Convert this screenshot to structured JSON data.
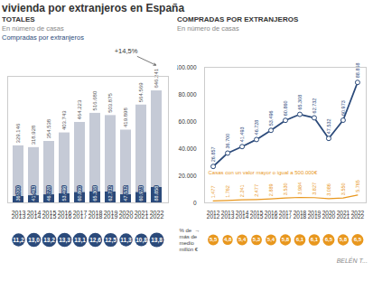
{
  "title": "vivienda por extranjeros en España",
  "caption": "BELÉN T...",
  "chart_data": [
    {
      "type": "bar",
      "title": "TOTALES",
      "subtitle": "En número de casas",
      "stacked": true,
      "categories": [
        "2013",
        "2014",
        "2015",
        "2016",
        "2017",
        "2018",
        "2019",
        "2020",
        "2021",
        "2022"
      ],
      "series": [
        {
          "name": "Compradas por extranjeros",
          "color": "#2b4a7a",
          "values": [
            36700,
            41493,
            46728,
            53496,
            60860,
            65308,
            62732,
            47532,
            60973,
            88858
          ],
          "value_labels": [
            "36.700",
            "41.493",
            "46.728",
            "53.496",
            "60.860",
            "65.308",
            "62.732",
            "47.532",
            "60.973",
            "88.858"
          ]
        },
        {
          "color": "#c5cad6",
          "values": [
            292446,
            277435,
            307810,
            350247,
            403363,
            451372,
            441143,
            372366,
            503596,
            557383
          ]
        }
      ],
      "totals": [
        329146,
        318928,
        354538,
        403743,
        464223,
        516680,
        503875,
        419898,
        564569,
        646241
      ],
      "total_labels": [
        "329.146",
        "318.928",
        "354.538",
        "403.743",
        "464.223",
        "516.680",
        "503.875",
        "419.898",
        "564.569",
        "646.241"
      ],
      "data_labels": true,
      "annotation": "+14,5%",
      "ylim": [
        0,
        730000
      ],
      "tick_labels": "x",
      "grid": false,
      "legend": "top-left",
      "pct_values": [
        11.2,
        13.0,
        13.2,
        13.3,
        13.1,
        12.6,
        12.5,
        11.3,
        10.8,
        13.8
      ],
      "pct_labels": [
        "11,2",
        "13,0",
        "13,2",
        "13,3",
        "13,1",
        "12,6",
        "12,5",
        "11,3",
        "10,8",
        "13,8"
      ]
    },
    {
      "type": "line",
      "title": "COMPRADAS POR EXTRANJEROS",
      "subtitle": "En número de casas",
      "x": [
        2012,
        2013,
        2014,
        2015,
        2016,
        2017,
        2018,
        2019,
        2020,
        2021,
        2022
      ],
      "xlim": [
        2011.4,
        2022.6
      ],
      "xticks": [
        2012,
        2013,
        2014,
        2015,
        2016,
        2017,
        2018,
        2019,
        2020,
        2021,
        2022
      ],
      "ylim": [
        0,
        100000
      ],
      "yticks": [
        0,
        {
          "value": 20000,
          "label": "20.000"
        },
        {
          "value": 40000,
          "label": "40.000"
        },
        {
          "value": 60000,
          "label": "60.000"
        },
        {
          "value": 80000,
          "label": "80.000"
        },
        {
          "value": 100000,
          "label": "100.000"
        }
      ],
      "series": [
        {
          "color": "#2b4a7a",
          "marker": "circle",
          "values": [
            26857,
            36700,
            41493,
            46728,
            53496,
            60860,
            65308,
            62732,
            47532,
            60973,
            88858
          ],
          "value_labels": [
            "26.857",
            "36.700",
            "41.493",
            "46.728",
            "53.496",
            "60.860",
            "65.308",
            "62.732",
            "47.532",
            "60.973",
            "88.858"
          ]
        },
        {
          "name": "Casas con un valor mayor o igual a 500.000€",
          "color": "#e8971e",
          "values": [
            1477,
            1762,
            2241,
            2477,
            2889,
            3530,
            3984,
            3827,
            3086,
            3550,
            5765
          ],
          "value_labels": [
            "1.477",
            "1.762",
            "2.241",
            "2.477",
            "2.889",
            "3.530",
            "3.984",
            "3.827",
            "3.086",
            "3.550",
            "5.765"
          ]
        }
      ],
      "data_labels": true,
      "grid": false,
      "pct_caption": [
        "% de  →",
        "más de",
        "medio",
        "millón €"
      ],
      "pct_values": [
        5.5,
        4.8,
        5.4,
        5.3,
        5.4,
        5.8,
        6.1,
        6.1,
        6.5,
        5.8,
        6.5
      ],
      "pct_labels": [
        "5,5",
        "4,8",
        "5,4",
        "5,3",
        "5,4",
        "5,8",
        "6,1",
        "6,1",
        "6,5",
        "5,8",
        "6,5"
      ]
    }
  ]
}
